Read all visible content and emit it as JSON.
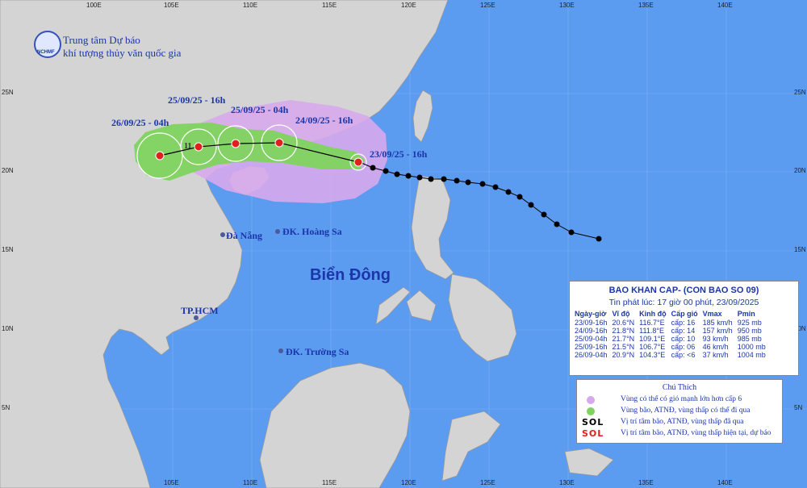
{
  "header": {
    "org_line1": "Trung tâm Dự báo",
    "org_line2": "khí tượng thủy văn quốc gia",
    "logo_text": "NCHMF"
  },
  "grid": {
    "lon_labels_top": [
      "100E",
      "105E",
      "110E",
      "115E",
      "120E",
      "125E",
      "130E",
      "135E",
      "140E"
    ],
    "lon_labels_bottom": [
      "105E",
      "110E",
      "115E",
      "120E",
      "125E",
      "130E",
      "135E",
      "140E"
    ],
    "lat_labels": [
      "25N",
      "20N",
      "15N",
      "10N",
      "5N"
    ]
  },
  "track_labels": {
    "p0": "23/09/25 - 16h",
    "p1": "24/09/25 - 16h",
    "p2": "25/09/25 - 04h",
    "p3": "25/09/25 - 16h",
    "p4": "26/09/25 - 04h",
    "h11": "11"
  },
  "places": {
    "da_nang": "Đà Nẵng",
    "hoang_sa": "ĐK. Hoàng Sa",
    "hcm": "TP.HCM",
    "truong_sa": "ĐK. Trường Sa",
    "sea": "Biển Đông"
  },
  "info": {
    "title": "BAO KHAN CAP- (CON BAO SO 09)",
    "issued": "Tin phát lúc: 17 giờ 00 phút, 23/09/2025",
    "headers": [
      "Ngày-giờ",
      "Vĩ độ",
      "Kinh độ",
      "Cấp gió",
      "Vmax",
      "Pmin"
    ],
    "rows": [
      [
        "23/09-16h",
        "20.6°N",
        "116.7°E",
        "cấp: 16",
        "185 km/h",
        "925 mb"
      ],
      [
        "24/09-16h",
        "21.8°N",
        "111.8°E",
        "cấp: 14",
        "157 km/h",
        "950 mb"
      ],
      [
        "25/09-04h",
        "21.7°N",
        "109.1°E",
        "cấp: 10",
        "93 km/h",
        "985 mb"
      ],
      [
        "25/09-16h",
        "21.5°N",
        "106.7°E",
        "cấp: 06",
        "46 km/h",
        "1000 mb"
      ],
      [
        "26/09-04h",
        "20.9°N",
        "104.3°E",
        "cấp: <6",
        "37 km/h",
        "1004 mb"
      ]
    ]
  },
  "legend": {
    "title": "Chú Thích",
    "items": [
      {
        "text": "Vùng có thể có gió mạnh lớn hơn cấp 6",
        "color": "#d7a9ec"
      },
      {
        "text": "Vùng bão, ATNĐ, vùng thấp có thể đi qua",
        "color": "#7fd35f"
      },
      {
        "text": "Vị trí tâm bão, ATNĐ, vùng thấp đã qua",
        "icon": "SOL",
        "color": "#000000"
      },
      {
        "text": "Vị trí tâm bão, ATNĐ, vùng thấp hiện tại, dự báo",
        "icon": "SOL",
        "color": "#e0201c"
      }
    ]
  },
  "colors": {
    "sea": "#5b9bf0",
    "land": "#d4d4d4",
    "wind_zone": "#d7a9ec",
    "cone": "#7fd35f",
    "text": "#1a36a8"
  }
}
